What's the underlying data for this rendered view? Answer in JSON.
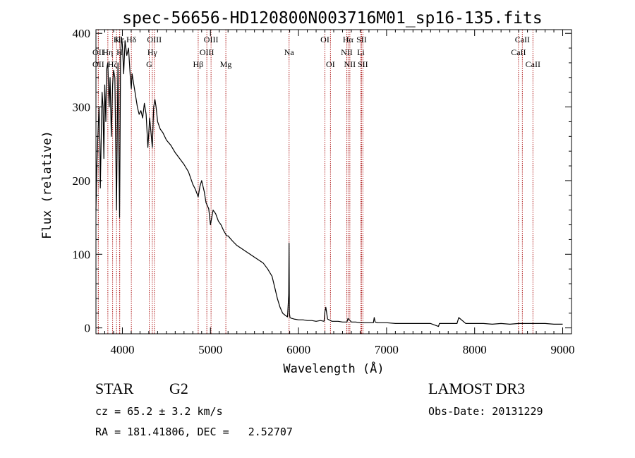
{
  "title": "spec-56656-HD120800N003716M01_sp16-135.fits",
  "chart_data": {
    "type": "line",
    "title": "spec-56656-HD120800N003716M01_sp16-135.fits",
    "xlabel": "Wavelength (Å)",
    "ylabel": "Flux (relative)",
    "xlim": [
      3700,
      9100
    ],
    "ylim": [
      -8,
      405
    ],
    "x_ticks": [
      4000,
      5000,
      6000,
      7000,
      8000,
      9000
    ],
    "y_ticks": [
      0,
      100,
      200,
      300,
      400
    ],
    "series": [
      {
        "name": "spectrum",
        "x": [
          3700,
          3710,
          3725,
          3735,
          3745,
          3750,
          3760,
          3770,
          3780,
          3790,
          3800,
          3812,
          3820,
          3835,
          3850,
          3860,
          3875,
          3889,
          3900,
          3915,
          3933,
          3950,
          3968,
          3980,
          3990,
          4000,
          4015,
          4030,
          4050,
          4070,
          4090,
          4101,
          4110,
          4130,
          4150,
          4170,
          4190,
          4210,
          4230,
          4250,
          4270,
          4290,
          4310,
          4325,
          4340,
          4355,
          4370,
          4383,
          4400,
          4430,
          4460,
          4500,
          4550,
          4600,
          4650,
          4700,
          4750,
          4800,
          4830,
          4861,
          4880,
          4900,
          4930,
          4950,
          4980,
          5000,
          5030,
          5060,
          5090,
          5120,
          5150,
          5170,
          5184,
          5200,
          5250,
          5300,
          5350,
          5400,
          5450,
          5500,
          5550,
          5600,
          5650,
          5700,
          5730,
          5760,
          5790,
          5820,
          5850,
          5875,
          5889,
          5893,
          5897,
          5903,
          5920,
          5950,
          6000,
          6050,
          6100,
          6150,
          6200,
          6250,
          6290,
          6300,
          6310,
          6330,
          6380,
          6450,
          6500,
          6550,
          6563,
          6600,
          6650,
          6700,
          6750,
          6800,
          6850,
          6860,
          6870,
          6900,
          6950,
          7000,
          7100,
          7200,
          7300,
          7400,
          7500,
          7590,
          7600,
          7700,
          7800,
          7820,
          7900,
          8000,
          8100,
          8200,
          8300,
          8400,
          8500,
          8600,
          8700,
          8800,
          8900,
          9000
        ],
        "y": [
          160,
          220,
          270,
          300,
          250,
          190,
          260,
          320,
          300,
          230,
          330,
          280,
          350,
          360,
          300,
          340,
          260,
          330,
          350,
          340,
          160,
          360,
          150,
          370,
          395,
          385,
          345,
          390,
          370,
          380,
          340,
          325,
          345,
          330,
          315,
          300,
          290,
          295,
          285,
          305,
          290,
          245,
          285,
          265,
          245,
          300,
          310,
          300,
          280,
          270,
          265,
          255,
          248,
          238,
          230,
          222,
          212,
          195,
          188,
          178,
          192,
          200,
          185,
          170,
          162,
          140,
          160,
          155,
          145,
          140,
          132,
          128,
          125,
          125,
          118,
          112,
          108,
          104,
          100,
          96,
          92,
          88,
          80,
          70,
          55,
          40,
          28,
          20,
          17,
          15,
          45,
          115,
          20,
          14,
          13,
          12,
          11,
          11,
          10,
          10,
          9,
          10,
          9,
          22,
          28,
          12,
          9,
          9,
          8,
          8,
          13,
          8,
          8,
          7,
          7,
          7,
          7,
          14,
          8,
          7,
          7,
          7,
          6,
          6,
          6,
          6,
          6,
          2,
          6,
          6,
          6,
          14,
          6,
          6,
          6,
          5,
          6,
          5,
          6,
          6,
          6,
          6,
          5,
          5
        ]
      }
    ],
    "line_markers": [
      {
        "label": "Hε",
        "wavelength": 3970,
        "row": 0
      },
      {
        "label": "K",
        "wavelength": 3934,
        "row": 0
      },
      {
        "label": "Hδ",
        "wavelength": 4102,
        "row": 0
      },
      {
        "label": "OII",
        "wavelength": 3727,
        "row": 2
      },
      {
        "label": "OII",
        "wavelength": 3727,
        "row": 1
      },
      {
        "label": "Hη",
        "wavelength": 3835,
        "row": 1
      },
      {
        "label": "Hζ",
        "wavelength": 3889,
        "row": 2
      },
      {
        "label": "H",
        "wavelength": 3968,
        "row": 1
      },
      {
        "label": "OIII",
        "wavelength": 4363,
        "row": 0
      },
      {
        "label": "Hγ",
        "wavelength": 4340,
        "row": 1
      },
      {
        "label": "G",
        "wavelength": 4305,
        "row": 2
      },
      {
        "label": "Hβ",
        "wavelength": 4861,
        "row": 2
      },
      {
        "label": "OIII",
        "wavelength": 5007,
        "row": 0
      },
      {
        "label": "OIII",
        "wavelength": 4959,
        "row": 1
      },
      {
        "label": "Mg",
        "wavelength": 5175,
        "row": 2
      },
      {
        "label": "Na",
        "wavelength": 5893,
        "row": 1
      },
      {
        "label": "OI",
        "wavelength": 6300,
        "row": 0
      },
      {
        "label": "OI",
        "wavelength": 6363,
        "row": 2
      },
      {
        "label": "Hα",
        "wavelength": 6563,
        "row": 0
      },
      {
        "label": "NII",
        "wavelength": 6548,
        "row": 1
      },
      {
        "label": "NII",
        "wavelength": 6583,
        "row": 2
      },
      {
        "label": "SII",
        "wavelength": 6716,
        "row": 0
      },
      {
        "label": "Li",
        "wavelength": 6708,
        "row": 1
      },
      {
        "label": "SII",
        "wavelength": 6731,
        "row": 2
      },
      {
        "label": "CaII",
        "wavelength": 8542,
        "row": 0
      },
      {
        "label": "CaII",
        "wavelength": 8498,
        "row": 1
      },
      {
        "label": "CaII",
        "wavelength": 8662,
        "row": 2
      }
    ],
    "line_marker_color": "#b22222"
  },
  "info": {
    "class": "STAR",
    "subclass": "G2",
    "survey": "LAMOST DR3",
    "cz": "cz = 65.2 ± 3.2 km/s",
    "obs_date": "Obs-Date: 20131229",
    "coords": "RA = 181.41806, DEC =   2.52707"
  }
}
